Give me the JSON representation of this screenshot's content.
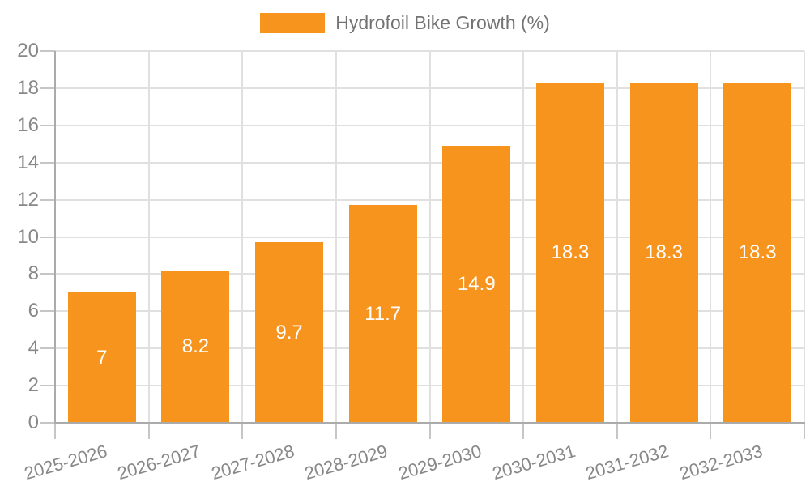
{
  "legend": {
    "label": "Hydrofoil Bike Growth (%)"
  },
  "chart_data": {
    "type": "bar",
    "title": "",
    "xlabel": "",
    "ylabel": "",
    "categories": [
      "2025-2026",
      "2026-2027",
      "2027-2028",
      "2028-2029",
      "2029-2030",
      "2030-2031",
      "2031-2032",
      "2032-2033"
    ],
    "series": [
      {
        "name": "Hydrofoil Bike Growth (%)",
        "values": [
          7,
          8.2,
          9.7,
          11.7,
          14.9,
          18.3,
          18.3,
          18.3
        ]
      }
    ],
    "bar_value_labels": [
      "7",
      "8.2",
      "9.7",
      "11.7",
      "14.9",
      "18.3",
      "18.3",
      "18.3"
    ],
    "ylim": [
      0,
      20
    ],
    "ytick_step": 2,
    "ytick_labels": [
      "0",
      "2",
      "4",
      "6",
      "8",
      "10",
      "12",
      "14",
      "16",
      "18",
      "20"
    ],
    "grid": true,
    "legend_position": "top-center",
    "colors": {
      "bar": "#F7941E",
      "axis_line": "#ababab",
      "gridline": "#e0e0e0",
      "tick": "#c6c6c6",
      "axis_text": "#888888",
      "legend_text": "#737373",
      "bar_value_text": "#ffffff"
    }
  }
}
